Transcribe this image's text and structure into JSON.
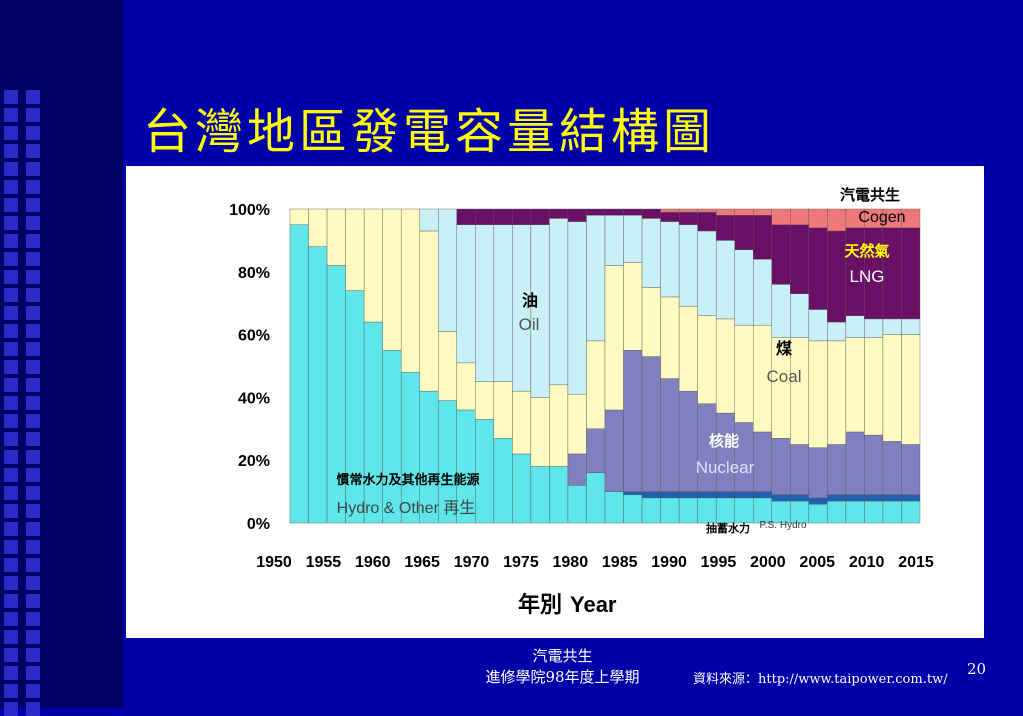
{
  "slide": {
    "title": "台灣地區發電容量結構圖",
    "footer_line1": "汽電共生",
    "footer_line2": "進修學院98年度上學期",
    "source": "資料來源：http://www.taipower.com.tw/",
    "page_number": "20"
  },
  "chart_data": {
    "type": "area",
    "stacked": true,
    "percent": true,
    "xlabel_zh": "年別",
    "xlabel_en": "Year",
    "x": [
      1950,
      1952,
      1954,
      1956,
      1958,
      1960,
      1962,
      1964,
      1966,
      1968,
      1970,
      1972,
      1974,
      1976,
      1978,
      1980,
      1982,
      1984,
      1986,
      1988,
      1990,
      1992,
      1994,
      1996,
      1998,
      2000,
      2002,
      2004,
      2006,
      2008,
      2010,
      2012,
      2014,
      2016
    ],
    "x_tick_labels": [
      "1950",
      "1955",
      "1960",
      "1965",
      "1970",
      "1975",
      "1980",
      "1985",
      "1990",
      "1995",
      "2000",
      "2005",
      "2010",
      "2015"
    ],
    "y_tick_labels": [
      "0%",
      "20%",
      "40%",
      "60%",
      "80%",
      "100%"
    ],
    "ylim": [
      0,
      100
    ],
    "series": [
      {
        "key": "hydro",
        "name_zh": "慣常水力及其他再生能源",
        "name_en": "Hydro & Other 再生",
        "color": "#5ee6ea",
        "values": [
          95,
          88,
          82,
          74,
          64,
          55,
          48,
          42,
          39,
          36,
          33,
          27,
          22,
          18,
          18,
          12,
          16,
          10,
          9,
          8,
          8,
          8,
          8,
          8,
          8,
          8,
          7,
          7,
          6,
          7,
          7,
          7,
          7,
          7
        ]
      },
      {
        "key": "pumped",
        "name_zh": "抽蓄水力",
        "name_en": "P.S. Hydro",
        "color": "#2060b0",
        "values": [
          0,
          0,
          0,
          0,
          0,
          0,
          0,
          0,
          0,
          0,
          0,
          0,
          0,
          0,
          0,
          0,
          0,
          0,
          1,
          2,
          2,
          2,
          2,
          2,
          2,
          2,
          2,
          2,
          2,
          2,
          2,
          2,
          2,
          2
        ]
      },
      {
        "key": "nuclear",
        "name_zh": "核能",
        "name_en": "Nuclear",
        "color": "#8080c0",
        "values": [
          0,
          0,
          0,
          0,
          0,
          0,
          0,
          0,
          0,
          0,
          0,
          0,
          0,
          0,
          0,
          10,
          14,
          26,
          45,
          43,
          36,
          32,
          28,
          25,
          22,
          19,
          18,
          16,
          16,
          16,
          20,
          19,
          17,
          16
        ]
      },
      {
        "key": "coal",
        "name_zh": "燃煤",
        "name_en": "Coal",
        "color": "#fffbc0",
        "values": [
          5,
          12,
          18,
          26,
          36,
          45,
          52,
          51,
          22,
          15,
          12,
          18,
          20,
          22,
          26,
          19,
          28,
          46,
          28,
          22,
          26,
          27,
          28,
          30,
          31,
          34,
          32,
          34,
          34,
          33,
          30,
          31,
          34,
          35
        ]
      },
      {
        "key": "oil",
        "name_zh": "燃油",
        "name_en": "Oil",
        "color": "#c8f0f6",
        "values": [
          0,
          0,
          0,
          0,
          0,
          0,
          0,
          7,
          39,
          44,
          50,
          50,
          53,
          55,
          53,
          55,
          40,
          16,
          15,
          22,
          24,
          26,
          27,
          25,
          24,
          21,
          17,
          14,
          10,
          6,
          7,
          6,
          5,
          5
        ]
      },
      {
        "key": "lng",
        "name_zh": "天然氣",
        "name_en": "LNG",
        "color": "#6a0f66",
        "values": [
          0,
          0,
          0,
          0,
          0,
          0,
          0,
          0,
          0,
          5,
          5,
          5,
          5,
          5,
          3,
          4,
          2,
          2,
          2,
          3,
          3,
          4,
          6,
          8,
          11,
          14,
          19,
          22,
          26,
          29,
          28,
          29,
          29,
          29
        ]
      },
      {
        "key": "cogen",
        "name_zh": "汽電共生",
        "name_en": "Cogen",
        "color": "#f07878",
        "values": [
          0,
          0,
          0,
          0,
          0,
          0,
          0,
          0,
          0,
          0,
          0,
          0,
          0,
          0,
          0,
          0,
          0,
          0,
          0,
          0,
          1,
          1,
          1,
          2,
          2,
          2,
          5,
          5,
          6,
          7,
          6,
          6,
          6,
          6
        ]
      }
    ],
    "labels": {
      "cogen_zh": "汽電共生",
      "cogen_en": "Cogen",
      "lng_zh": "天然氣",
      "lng_en": "LNG",
      "oil_zh": "油",
      "oil_en": "Oil",
      "coal_zh": "煤",
      "coal_en": "Coal",
      "nuclear_zh": "核能",
      "nuclear_en": "Nuclear",
      "hydro_zh": "慣常水力及其他再生能源",
      "hydro_en": "Hydro & Other 再生",
      "pumped_zh": "抽蓄水力",
      "pumped_en": "P.S. Hydro"
    }
  }
}
